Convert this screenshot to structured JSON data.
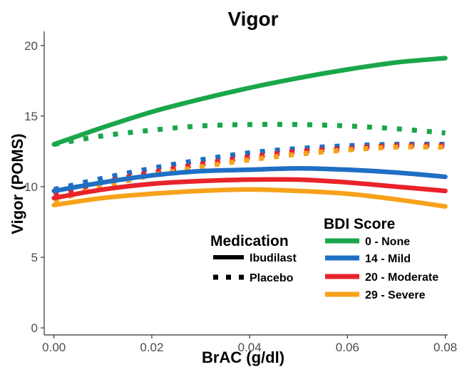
{
  "chart_data": {
    "type": "line",
    "title": "Vigor",
    "xlabel": "BrAC (g/dl)",
    "ylabel": "Vigor (POMS)",
    "xlim": [
      -0.002,
      0.0805
    ],
    "ylim": [
      -0.5,
      21.0
    ],
    "x_ticks": [
      "0.00",
      "0.02",
      "0.04",
      "0.06",
      "0.08"
    ],
    "y_ticks": [
      "0",
      "5",
      "10",
      "15",
      "20"
    ],
    "x_tick_values": [
      0,
      0.02,
      0.04,
      0.06,
      0.08
    ],
    "y_tick_values": [
      0,
      5,
      10,
      15,
      20
    ],
    "grid": false,
    "x": [
      0.0,
      0.01,
      0.02,
      0.03,
      0.04,
      0.05,
      0.06,
      0.07,
      0.08
    ],
    "series": [
      {
        "bdi": "0 - None",
        "medication": "Ibudilast",
        "color": "#1aa64a",
        "style": "solid",
        "values": [
          13.0,
          14.2,
          15.3,
          16.2,
          17.0,
          17.7,
          18.3,
          18.8,
          19.1
        ]
      },
      {
        "bdi": "0 - None",
        "medication": "Placebo",
        "color": "#1aa64a",
        "style": "dotted",
        "values": [
          13.0,
          13.6,
          14.0,
          14.3,
          14.4,
          14.4,
          14.3,
          14.1,
          13.8
        ]
      },
      {
        "bdi": "14 - Mild",
        "medication": "Ibudilast",
        "color": "#1f6fc4",
        "style": "solid",
        "values": [
          9.7,
          10.3,
          10.8,
          11.1,
          11.2,
          11.3,
          11.2,
          11.0,
          10.7
        ]
      },
      {
        "bdi": "14 - Mild",
        "medication": "Placebo",
        "color": "#1f6fc4",
        "style": "dotted",
        "values": [
          9.8,
          10.6,
          11.3,
          11.9,
          12.4,
          12.7,
          12.9,
          13.0,
          13.0
        ]
      },
      {
        "bdi": "20 - Moderate",
        "medication": "Ibudilast",
        "color": "#e8232a",
        "style": "solid",
        "values": [
          9.2,
          9.8,
          10.2,
          10.4,
          10.5,
          10.5,
          10.3,
          10.0,
          9.7
        ]
      },
      {
        "bdi": "20 - Moderate",
        "medication": "Placebo",
        "color": "#e8232a",
        "style": "dotted",
        "values": [
          9.4,
          10.3,
          11.0,
          11.6,
          12.1,
          12.5,
          12.7,
          12.9,
          12.9
        ]
      },
      {
        "bdi": "29 - Severe",
        "medication": "Ibudilast",
        "color": "#f7a21b",
        "style": "solid",
        "values": [
          8.7,
          9.2,
          9.5,
          9.7,
          9.8,
          9.7,
          9.5,
          9.1,
          8.6
        ]
      },
      {
        "bdi": "29 - Severe",
        "medication": "Placebo",
        "color": "#f7a21b",
        "style": "dotted",
        "values": [
          9.0,
          10.0,
          10.8,
          11.4,
          11.9,
          12.3,
          12.6,
          12.8,
          12.8
        ]
      }
    ],
    "legend": {
      "placement": "bottom-right",
      "medication": {
        "title": "Medication",
        "items": [
          {
            "label": "Ibudilast",
            "style": "solid"
          },
          {
            "label": "Placebo",
            "style": "dotted"
          }
        ]
      },
      "bdi": {
        "title": "BDI Score",
        "items": [
          {
            "label": "0 - None",
            "color": "#1aa64a"
          },
          {
            "label": "14 - Mild",
            "color": "#1f6fc4"
          },
          {
            "label": "20 - Moderate",
            "color": "#e8232a"
          },
          {
            "label": "29 - Severe",
            "color": "#f7a21b"
          }
        ]
      }
    }
  }
}
